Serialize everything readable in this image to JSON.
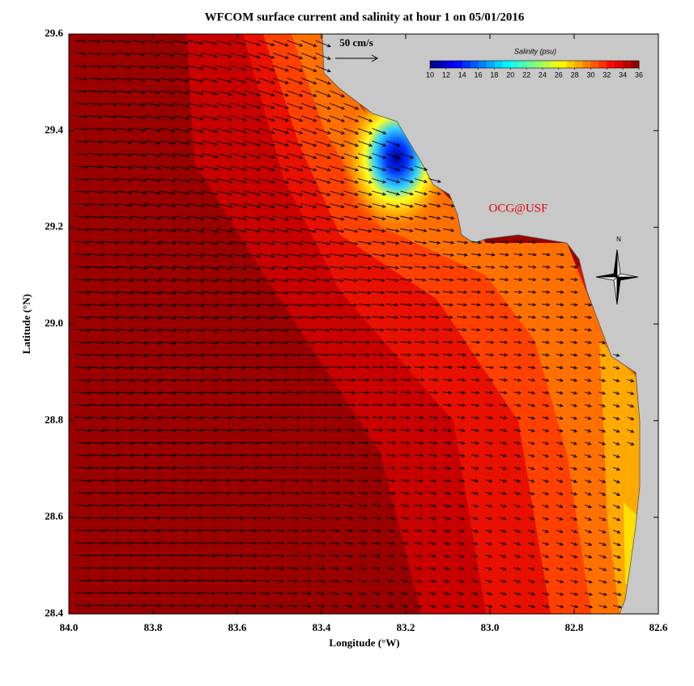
{
  "title": "WFCOM surface current and salinity at hour 1 on 05/01/2016",
  "x_axis": {
    "label": "Longitude (°W)",
    "lim": [
      84.0,
      82.6
    ],
    "ticks": [
      {
        "value": 84,
        "label": "84.0"
      },
      83.8,
      83.6,
      83.4,
      83.2,
      {
        "value": 83,
        "label": "83.0"
      },
      82.8,
      82.6
    ]
  },
  "y_axis": {
    "label": "Latitude (°N)",
    "lim": [
      28.4,
      29.6
    ],
    "ticks": [
      28.4,
      28.6,
      28.8,
      {
        "value": 29,
        "label": "29.0"
      },
      29.2,
      29.4,
      29.6
    ]
  },
  "colorbar": {
    "label": "Salinity (psu)",
    "lim": [
      10,
      36
    ],
    "ticks": [
      10,
      12,
      14,
      16,
      18,
      20,
      22,
      24,
      26,
      28,
      30,
      32,
      34,
      36
    ]
  },
  "scale_label": "50 cm/s",
  "credit": "OCG@USF",
  "compass_label": "N"
}
